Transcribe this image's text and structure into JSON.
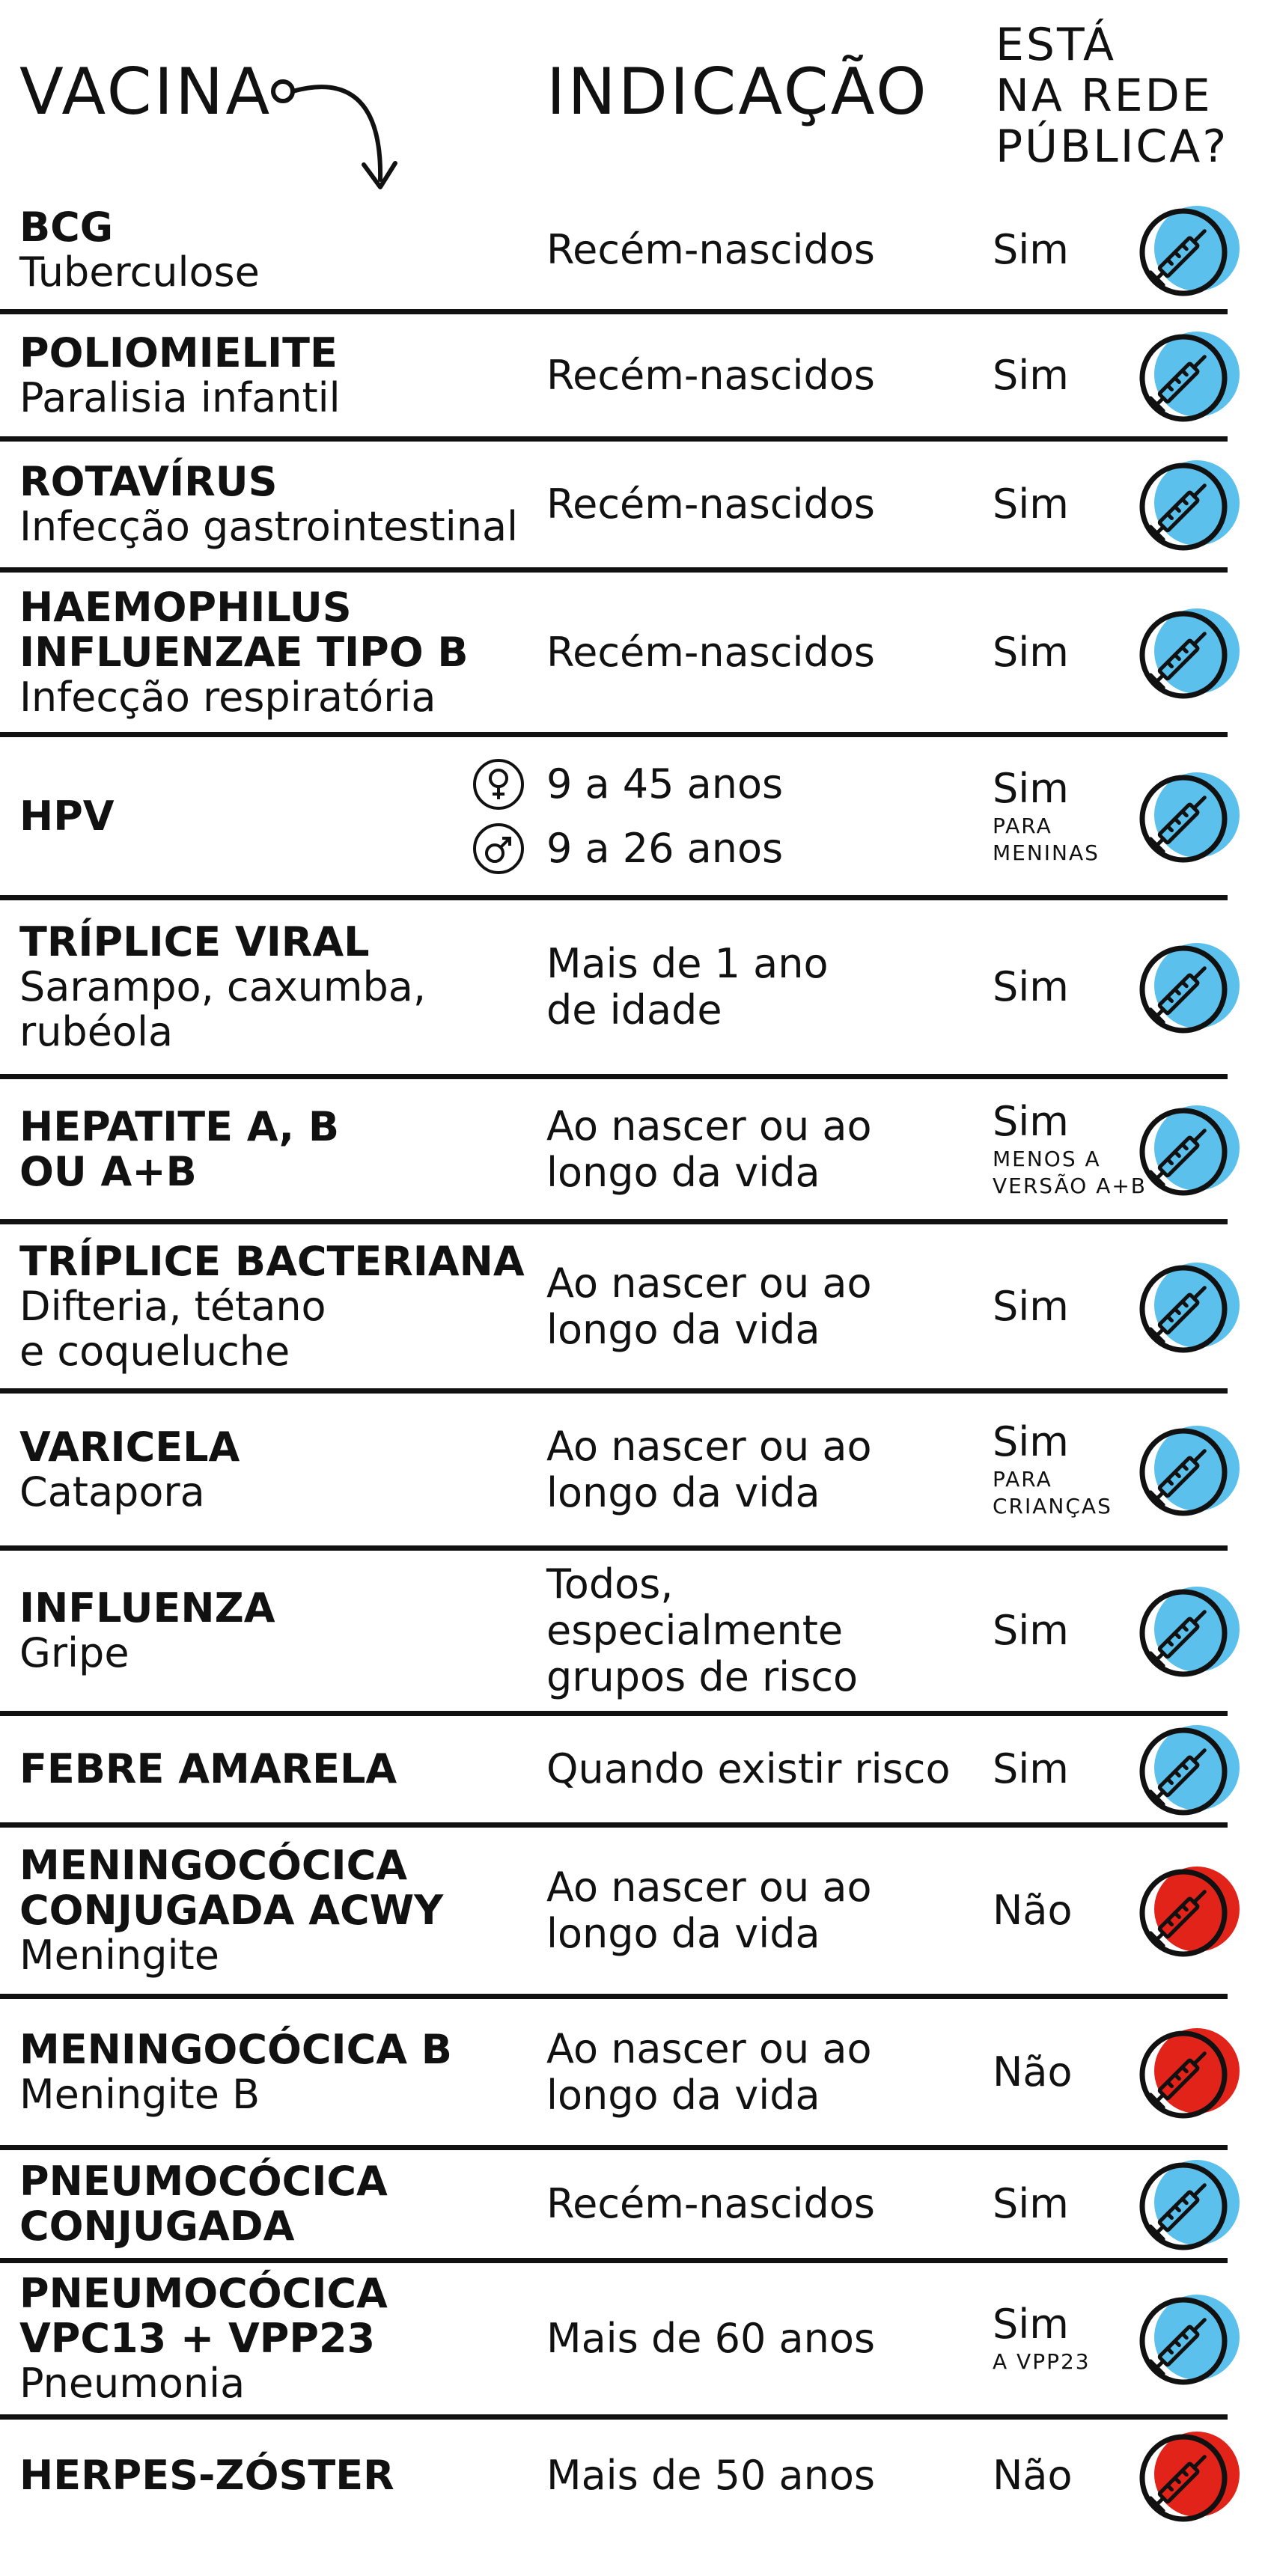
{
  "header": {
    "vacina": "VACINA",
    "indicacao": "INDICAÇÃO",
    "rede_publica": [
      "ESTÁ",
      "NA REDE",
      "PÚBLICA?"
    ]
  },
  "colors": {
    "sim": "#5bc0eb",
    "nao": "#e2231a",
    "line": "#111111"
  },
  "icons": {
    "sim": "syringe-icon",
    "nao": "syringe-icon",
    "female": "female-symbol-icon",
    "male": "male-symbol-icon"
  },
  "rows": [
    {
      "name": "BCG",
      "desc": "Tuberculose",
      "indicacao": "Recém-nascidos",
      "publica": "Sim",
      "note": "",
      "status": "sim"
    },
    {
      "name": "POLIOMIELITE",
      "desc": "Paralisia infantil",
      "indicacao": "Recém-nascidos",
      "publica": "Sim",
      "note": "",
      "status": "sim"
    },
    {
      "name": "ROTAVÍRUS",
      "desc": "Infecção gastrointestinal",
      "indicacao": "Recém-nascidos",
      "publica": "Sim",
      "note": "",
      "status": "sim"
    },
    {
      "name": "HAEMOPHILUS\nINFLUENZAE TIPO B",
      "desc": "Infecção respiratória",
      "indicacao": "Recém-nascidos",
      "publica": "Sim",
      "note": "",
      "status": "sim"
    },
    {
      "name": "HPV",
      "desc": "",
      "indicacao_female": "9 a 45 anos",
      "indicacao_male": "9 a 26 anos",
      "publica": "Sim",
      "note": "PARA\nMENINAS",
      "status": "sim"
    },
    {
      "name": "TRÍPLICE VIRAL",
      "desc": "Sarampo, caxumba,\nrubéola",
      "indicacao": "Mais de 1 ano\nde idade",
      "publica": "Sim",
      "note": "",
      "status": "sim"
    },
    {
      "name": "HEPATITE A, B\nOU A+B",
      "desc": "",
      "indicacao": "Ao nascer ou ao\nlongo da vida",
      "publica": "Sim",
      "note": "MENOS A\nVERSÃO A+B",
      "status": "sim"
    },
    {
      "name": "TRÍPLICE BACTERIANA",
      "desc": "Difteria, tétano\ne coqueluche",
      "indicacao": "Ao nascer ou ao\nlongo da vida",
      "publica": "Sim",
      "note": "",
      "status": "sim"
    },
    {
      "name": "VARICELA",
      "desc": "Catapora",
      "indicacao": "Ao nascer ou ao\nlongo da vida",
      "publica": "Sim",
      "note": "PARA\nCRIANÇAS",
      "status": "sim"
    },
    {
      "name": "INFLUENZA",
      "desc": "Gripe",
      "indicacao": "Todos,\nespecialmente\ngrupos de risco",
      "publica": "Sim",
      "note": "",
      "status": "sim"
    },
    {
      "name": "FEBRE AMARELA",
      "desc": "",
      "indicacao": "Quando existir risco",
      "publica": "Sim",
      "note": "",
      "status": "sim"
    },
    {
      "name": "MENINGOCÓCICA\nCONJUGADA ACWY",
      "desc": "Meningite",
      "indicacao": "Ao nascer ou ao\nlongo da vida",
      "publica": "Não",
      "note": "",
      "status": "nao"
    },
    {
      "name": "MENINGOCÓCICA B",
      "desc": "Meningite B",
      "indicacao": "Ao nascer ou ao\nlongo da vida",
      "publica": "Não",
      "note": "",
      "status": "nao"
    },
    {
      "name": "PNEUMOCÓCICA\nCONJUGADA",
      "desc": "",
      "indicacao": "Recém-nascidos",
      "publica": "Sim",
      "note": "",
      "status": "sim"
    },
    {
      "name": "PNEUMOCÓCICA\nVPC13 + VPP23",
      "desc": "Pneumonia",
      "indicacao": "Mais de 60 anos",
      "publica": "Sim",
      "note": "A VPP23",
      "status": "sim"
    },
    {
      "name": "HERPES-ZÓSTER",
      "desc": "",
      "indicacao": "Mais de 50 anos",
      "publica": "Não",
      "note": "",
      "status": "nao"
    }
  ]
}
